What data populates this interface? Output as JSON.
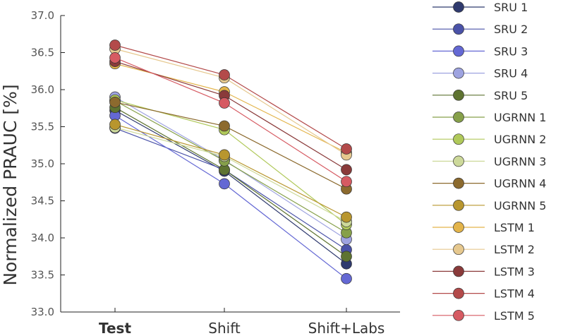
{
  "chart_data": {
    "type": "line",
    "ylabel": "Normalized PRAUC [%]",
    "xlabel": "",
    "categories": [
      "Test",
      "Shift",
      "Shift+Labs"
    ],
    "bold_categories": [
      "Test"
    ],
    "ylim": [
      33.0,
      37.0
    ],
    "yticks": [
      "33.0",
      "33.5",
      "34.0",
      "34.5",
      "35.0",
      "35.5",
      "36.0",
      "36.5",
      "37.0"
    ],
    "grid": false,
    "legend_position": "right",
    "series": [
      {
        "name": "SRU 1",
        "color": "#2f3a6e",
        "values": [
          35.72,
          34.9,
          33.65
        ]
      },
      {
        "name": "SRU 2",
        "color": "#4a52a8",
        "values": [
          35.48,
          34.92,
          33.84
        ]
      },
      {
        "name": "SRU 3",
        "color": "#6468d4",
        "values": [
          35.65,
          34.73,
          33.45
        ]
      },
      {
        "name": "SRU 4",
        "color": "#9ea3e0",
        "values": [
          35.9,
          35.05,
          33.98
        ]
      },
      {
        "name": "SRU 5",
        "color": "#5e7330",
        "values": [
          35.76,
          34.92,
          33.75
        ]
      },
      {
        "name": "UGRNN 1",
        "color": "#86a04a",
        "values": [
          35.85,
          35.04,
          34.07
        ]
      },
      {
        "name": "UGRNN 2",
        "color": "#b0c95a",
        "values": [
          35.86,
          35.46,
          34.18
        ]
      },
      {
        "name": "UGRNN 3",
        "color": "#cdd99a",
        "values": [
          35.49,
          35.1,
          34.22
        ]
      },
      {
        "name": "UGRNN 4",
        "color": "#8c6a2e",
        "values": [
          35.83,
          35.51,
          34.66
        ]
      },
      {
        "name": "UGRNN 5",
        "color": "#b8962e",
        "values": [
          35.53,
          35.12,
          34.28
        ]
      },
      {
        "name": "LSTM 1",
        "color": "#e3b44a",
        "values": [
          36.35,
          35.97,
          35.15
        ]
      },
      {
        "name": "LSTM 2",
        "color": "#e6c88e",
        "values": [
          36.55,
          36.16,
          35.12
        ]
      },
      {
        "name": "LSTM 3",
        "color": "#8a3a3a",
        "values": [
          36.38,
          35.92,
          34.92
        ]
      },
      {
        "name": "LSTM 4",
        "color": "#b34a4a",
        "values": [
          36.6,
          36.2,
          35.2
        ]
      },
      {
        "name": "LSTM 5",
        "color": "#d65a62",
        "values": [
          36.43,
          35.82,
          34.76
        ]
      }
    ]
  }
}
